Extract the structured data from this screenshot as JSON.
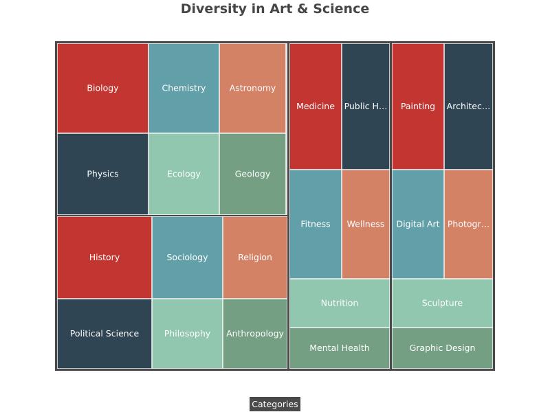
{
  "title": "Diversity in Art & Science",
  "breadcrumb_label": "Categories",
  "colors": {
    "border": "#4a4a4a",
    "palette": [
      "#c23531",
      "#2f4554",
      "#61a0a8",
      "#d48265",
      "#91c7ae",
      "#749f83"
    ]
  },
  "chart_data": {
    "type": "treemap",
    "title": "Diversity in Art & Science",
    "groups": [
      {
        "name": "",
        "children": [
          {
            "name": "Biology",
            "label": "Biology",
            "value": 160,
            "color": "#c23531"
          },
          {
            "name": "Chemistry",
            "label": "Chemistry",
            "value": 125,
            "color": "#61a0a8"
          },
          {
            "name": "Astronomy",
            "label": "Astronomy",
            "value": 120,
            "color": "#d48265"
          },
          {
            "name": "Physics",
            "label": "Physics",
            "value": 145,
            "color": "#2f4554"
          },
          {
            "name": "Ecology",
            "label": "Ecology",
            "value": 115,
            "color": "#91c7ae"
          },
          {
            "name": "Geology",
            "label": "Geology",
            "value": 110,
            "color": "#749f83"
          }
        ]
      },
      {
        "name": "",
        "children": [
          {
            "name": "History",
            "label": "History",
            "value": 130,
            "color": "#c23531"
          },
          {
            "name": "Sociology",
            "label": "Sociology",
            "value": 100,
            "color": "#61a0a8"
          },
          {
            "name": "Religion",
            "label": "Religion",
            "value": 90,
            "color": "#d48265"
          },
          {
            "name": "Political Science",
            "label": "Political Science",
            "value": 100,
            "color": "#2f4554"
          },
          {
            "name": "Philosophy",
            "label": "Philosophy",
            "value": 75,
            "color": "#91c7ae"
          },
          {
            "name": "Anthropology",
            "label": "Anthropology",
            "value": 70,
            "color": "#749f83"
          }
        ]
      },
      {
        "name": "",
        "children": [
          {
            "name": "Medicine",
            "label": "Medicine",
            "value": 90,
            "color": "#c23531"
          },
          {
            "name": "Public H…",
            "label": "Public H…",
            "value": 80,
            "color": "#2f4554"
          },
          {
            "name": "Fitness",
            "label": "Fitness",
            "value": 85,
            "color": "#61a0a8"
          },
          {
            "name": "Wellness",
            "label": "Wellness",
            "value": 80,
            "color": "#d48265"
          },
          {
            "name": "Nutrition",
            "label": "Nutrition",
            "value": 75,
            "color": "#91c7ae"
          },
          {
            "name": "Mental Health",
            "label": "Mental Health",
            "value": 65,
            "color": "#749f83"
          }
        ]
      },
      {
        "name": "",
        "children": [
          {
            "name": "Painting",
            "label": "Painting",
            "value": 90,
            "color": "#c23531"
          },
          {
            "name": "Architec…",
            "label": "Architec…",
            "value": 80,
            "color": "#2f4554"
          },
          {
            "name": "Digital Art",
            "label": "Digital Art",
            "value": 85,
            "color": "#61a0a8"
          },
          {
            "name": "Photogr…",
            "label": "Photogr…",
            "value": 80,
            "color": "#d48265"
          },
          {
            "name": "Sculpture",
            "label": "Sculpture",
            "value": 75,
            "color": "#91c7ae"
          },
          {
            "name": "Graphic Design",
            "label": "Graphic Design",
            "value": 65,
            "color": "#749f83"
          }
        ]
      }
    ]
  }
}
